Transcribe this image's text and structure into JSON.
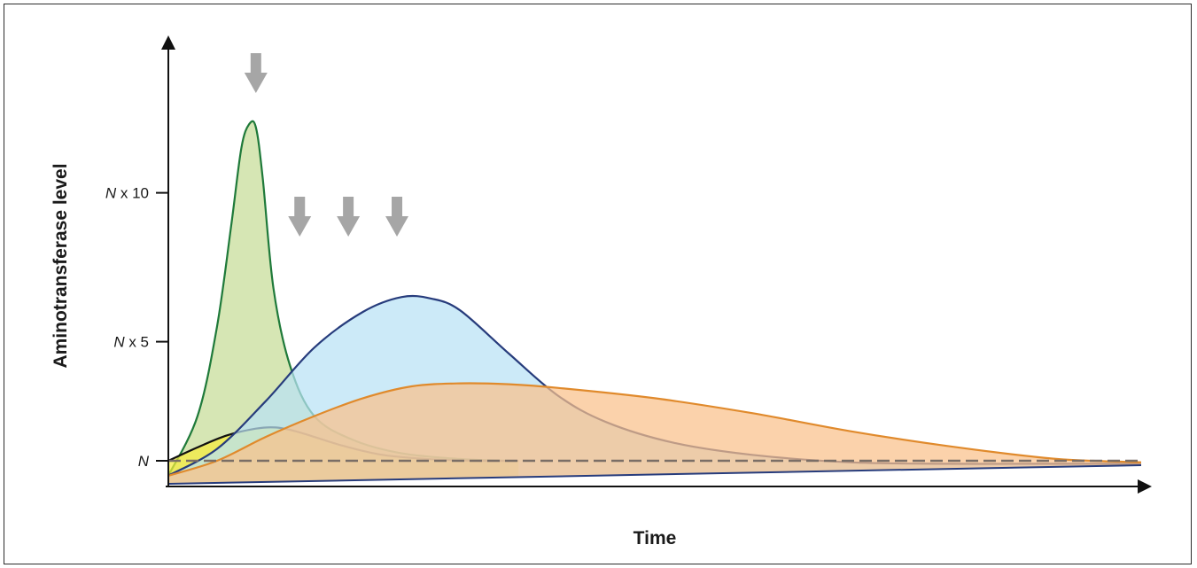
{
  "chart_data": {
    "type": "area",
    "xlabel": "Time",
    "ylabel": "Aminotransferase level",
    "y_ticks": [
      {
        "value": 1,
        "base": "N",
        "suffix": ""
      },
      {
        "value": 5,
        "base": "N",
        "suffix": " x 5"
      },
      {
        "value": 10,
        "base": "N",
        "suffix": " x 10"
      }
    ],
    "reference_line": {
      "value": 1,
      "style": "dashed"
    },
    "xlim": [
      0,
      100
    ],
    "ylim": [
      0.4,
      13.5
    ],
    "grid": false,
    "legend": "none",
    "arrows_at_x": [
      9,
      13.5,
      18.5,
      23.5
    ],
    "series": [
      {
        "fill": "#c6dc97",
        "stroke": "#1f7a3a",
        "x": [
          0,
          3,
          5,
          6.5,
          7.5,
          8.3,
          9,
          9.7,
          10.8,
          12.5,
          15,
          19,
          24,
          30,
          35
        ],
        "y": [
          0.5,
          2.5,
          5.5,
          9,
          11.5,
          12.3,
          12.2,
          10.5,
          6.8,
          4.2,
          2.5,
          1.7,
          1.25,
          1.06,
          1.0
        ]
      },
      {
        "fill": "#f5ec3c",
        "stroke": "#111111",
        "x": [
          0,
          3,
          6,
          9,
          11,
          13,
          15,
          18,
          22,
          27,
          32,
          36
        ],
        "y": [
          1.0,
          1.45,
          1.85,
          2.08,
          2.12,
          2.0,
          1.8,
          1.5,
          1.2,
          1.05,
          1.0,
          1.0
        ]
      },
      {
        "fill": "#b9e2f5",
        "stroke": "#273c7c",
        "x": [
          0,
          5,
          10,
          15,
          20,
          24,
          27,
          30,
          35,
          40,
          45,
          52,
          60,
          70,
          80,
          90,
          100
        ],
        "y": [
          0.5,
          1.4,
          3.0,
          4.8,
          6.0,
          6.5,
          6.45,
          6.05,
          4.6,
          3.2,
          2.3,
          1.6,
          1.2,
          0.95,
          0.9,
          0.9,
          0.9
        ]
      },
      {
        "fill": "#fac18a",
        "stroke": "#e08a2c",
        "x": [
          0,
          5,
          10,
          15,
          20,
          25,
          30,
          35,
          40,
          50,
          60,
          70,
          80,
          90,
          95,
          100
        ],
        "y": [
          0.5,
          1.0,
          1.8,
          2.5,
          3.1,
          3.5,
          3.6,
          3.57,
          3.45,
          3.1,
          2.6,
          2.0,
          1.5,
          1.1,
          1.0,
          0.95
        ]
      }
    ]
  }
}
